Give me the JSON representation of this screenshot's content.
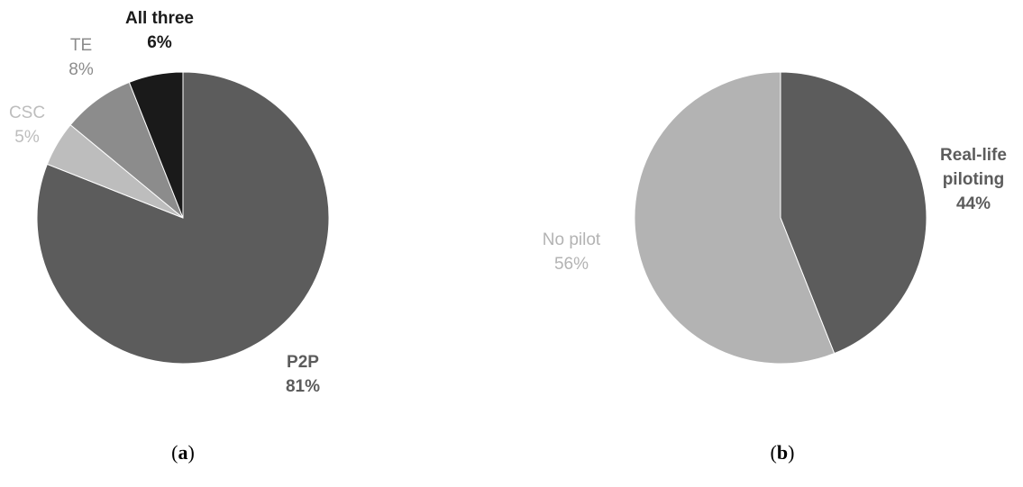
{
  "chart_data": [
    {
      "type": "pie",
      "panel_label": "(a)",
      "panel_letter": "a",
      "start_angle_deg": 0,
      "direction": "clockwise",
      "slices": [
        {
          "name": "P2P",
          "value": 81,
          "display": "81%",
          "color": "#5c5c5c",
          "label_color": "#5c5c5c",
          "bold": true
        },
        {
          "name": "CSC",
          "value": 5,
          "display": "5%",
          "color": "#bdbdbd",
          "label_color": "#bdbdbd",
          "bold": false
        },
        {
          "name": "TE",
          "value": 8,
          "display": "8%",
          "color": "#8c8c8c",
          "label_color": "#8c8c8c",
          "bold": false
        },
        {
          "name": "All three",
          "value": 6,
          "display": "6%",
          "color": "#1a1a1a",
          "label_color": "#1a1a1a",
          "bold": true
        }
      ]
    },
    {
      "type": "pie",
      "panel_label": "(b)",
      "panel_letter": "b",
      "start_angle_deg": 0,
      "direction": "clockwise",
      "slices": [
        {
          "name": "Real-life\npiloting",
          "value": 44,
          "display": "44%",
          "color": "#5c5c5c",
          "label_color": "#5c5c5c",
          "bold": true
        },
        {
          "name": "No pilot",
          "value": 56,
          "display": "56%",
          "color": "#b3b3b3",
          "label_color": "#b3b3b3",
          "bold": false
        }
      ]
    }
  ]
}
